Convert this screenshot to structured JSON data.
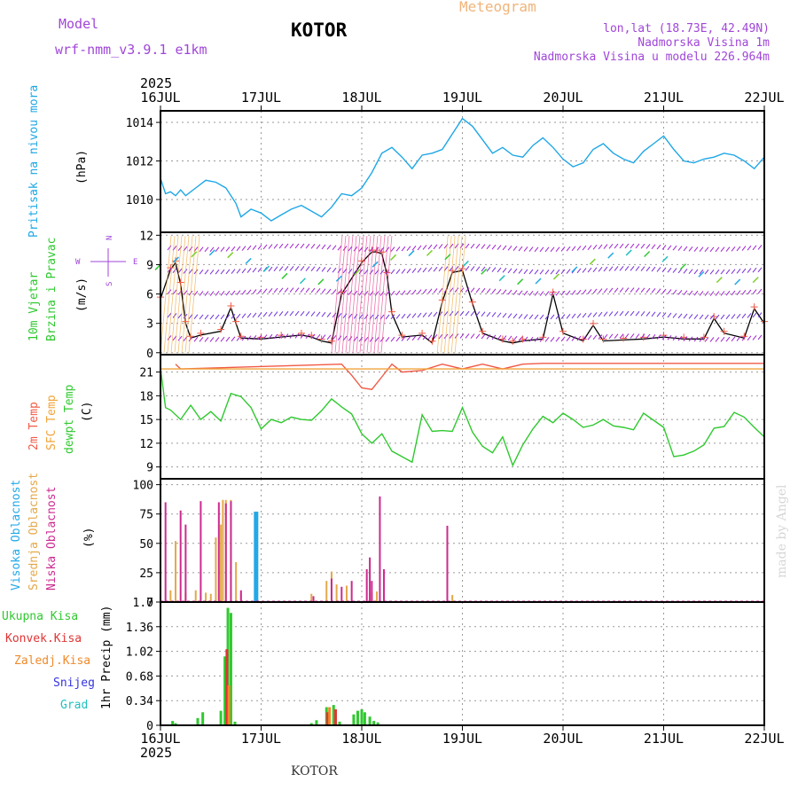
{
  "header": {
    "model_label": "Model",
    "model_name": "wrf-nmm_v3.9.1 e1km",
    "station": "KOTOR",
    "product": "Meteogram",
    "coords": "lon,lat (18.73E, 42.49N)",
    "elevation": "Nadmorska Visina 1m",
    "model_elevation": "Nadmorska Visina u modelu 226.964m",
    "footer_station": "KOTOR",
    "credit": "made by Angel"
  },
  "colors": {
    "pressure": "#1ea7e6",
    "temp2m": "#f05a46",
    "sfc_temp": "#f0a43a",
    "dewpoint": "#2fc92f",
    "high_cloud": "#23a8e8",
    "mid_cloud": "#e3a94a",
    "low_cloud": "#cc2a90",
    "total_precip": "#2fc92f",
    "conv_precip": "#e03434",
    "frozen_precip": "#f08a2a",
    "snow": "#3434e0",
    "hail": "#20c0c0",
    "model_label": "#a046d8",
    "product": "#f0b47a"
  },
  "time_axis": {
    "year": "2025",
    "ticks": [
      "16JUL",
      "17JUL",
      "18JUL",
      "19JUL",
      "20JUL",
      "21JUL",
      "22JUL"
    ]
  },
  "panels": {
    "pressure": {
      "label": "Pritisak na nivou mora",
      "unit": "(hPa)"
    },
    "wind": {
      "label1": "10m Vjetar",
      "label2": "Brzina i Pravac",
      "unit": "(m/s)",
      "compass": [
        "N",
        "E",
        "S",
        "W"
      ]
    },
    "temp": {
      "label1": "2m Temp",
      "label2": "SFC Temp",
      "label3": "dewpt Temp",
      "unit": "(C)"
    },
    "cloud": {
      "label1": "Visoka Oblacnost",
      "label2": "Srednja Oblacnost",
      "label3": "Niska Oblacnost",
      "unit": "(%)"
    },
    "precip": {
      "legend": [
        "Ukupna Kisa",
        "Konvek.Kisa",
        "Zaledj.Kisa",
        "Snijeg",
        "Grad"
      ],
      "unit": "1hr Precip (mm)"
    }
  },
  "chart_data": [
    {
      "type": "line",
      "panel": "pressure",
      "title": "Pritisak na nivou mora",
      "ylabel": "(hPa)",
      "x_unit": "days since 16JUL 00h",
      "ylim": [
        1008.3,
        1014.6
      ],
      "yticks": [
        1010,
        1012,
        1014
      ],
      "grid": true,
      "series": [
        {
          "name": "Pritisak na nivou mora",
          "x": [
            0,
            0.05,
            0.1,
            0.15,
            0.2,
            0.25,
            0.35,
            0.45,
            0.55,
            0.65,
            0.75,
            0.8,
            0.9,
            1.0,
            1.1,
            1.2,
            1.3,
            1.4,
            1.5,
            1.6,
            1.7,
            1.8,
            1.9,
            2.0,
            2.1,
            2.2,
            2.3,
            2.4,
            2.5,
            2.6,
            2.7,
            2.8,
            2.9,
            3.0,
            3.1,
            3.2,
            3.3,
            3.4,
            3.5,
            3.6,
            3.7,
            3.8,
            3.9,
            4.0,
            4.1,
            4.2,
            4.3,
            4.4,
            4.5,
            4.6,
            4.7,
            4.8,
            4.9,
            5.0,
            5.1,
            5.2,
            5.3,
            5.4,
            5.5,
            5.6,
            5.7,
            5.8,
            5.9,
            6.0
          ],
          "y": [
            1011.1,
            1010.3,
            1010.4,
            1010.2,
            1010.5,
            1010.2,
            1010.6,
            1011.0,
            1010.9,
            1010.6,
            1009.8,
            1009.1,
            1009.5,
            1009.3,
            1008.9,
            1009.2,
            1009.5,
            1009.7,
            1009.4,
            1009.1,
            1009.6,
            1010.3,
            1010.2,
            1010.6,
            1011.4,
            1012.4,
            1012.7,
            1012.2,
            1011.6,
            1012.3,
            1012.4,
            1012.6,
            1013.4,
            1014.2,
            1013.8,
            1013.1,
            1012.4,
            1012.7,
            1012.3,
            1012.2,
            1012.8,
            1013.2,
            1012.7,
            1012.1,
            1011.7,
            1011.9,
            1012.6,
            1012.9,
            1012.4,
            1012.1,
            1011.9,
            1012.5,
            1012.9,
            1013.3,
            1012.6,
            1012.0,
            1011.9,
            1012.1,
            1012.2,
            1012.4,
            1012.3,
            1012.0,
            1011.6,
            1012.2
          ]
        }
      ]
    },
    {
      "type": "line",
      "panel": "wind",
      "title": "10m Vjetar Brzina i Pravac",
      "ylabel": "(m/s)",
      "x_unit": "days since 16JUL 00h",
      "ylim": [
        -0.2,
        12.3
      ],
      "yticks": [
        0,
        3,
        6,
        9,
        12
      ],
      "grid": true,
      "series": [
        {
          "name": "Brzina",
          "x": [
            0,
            0.1,
            0.15,
            0.2,
            0.25,
            0.3,
            0.4,
            0.6,
            0.7,
            0.75,
            0.8,
            1.0,
            1.2,
            1.4,
            1.5,
            1.6,
            1.7,
            1.8,
            2.0,
            2.1,
            2.15,
            2.2,
            2.25,
            2.3,
            2.4,
            2.6,
            2.7,
            2.8,
            2.9,
            3.0,
            3.1,
            3.2,
            3.4,
            3.5,
            3.6,
            3.8,
            3.9,
            4.0,
            4.2,
            4.3,
            4.4,
            4.6,
            4.8,
            5.0,
            5.2,
            5.4,
            5.5,
            5.6,
            5.8,
            5.9,
            6.0
          ],
          "y": [
            5.5,
            8.5,
            9.2,
            7.0,
            3.0,
            1.5,
            1.8,
            2.2,
            4.6,
            3.0,
            1.5,
            1.4,
            1.6,
            1.8,
            1.6,
            1.2,
            1.0,
            6.0,
            9.2,
            10.3,
            10.3,
            10.1,
            8.0,
            4.0,
            1.6,
            1.8,
            1.0,
            5.2,
            8.2,
            8.4,
            5.0,
            2.0,
            1.2,
            1.0,
            1.2,
            1.4,
            6.0,
            2.0,
            1.2,
            2.8,
            1.2,
            1.3,
            1.4,
            1.6,
            1.4,
            1.4,
            3.5,
            2.0,
            1.5,
            4.5,
            3.0
          ]
        }
      ]
    },
    {
      "type": "line",
      "panel": "temperature",
      "title": "2m Temp / SFC Temp / dewpt Temp",
      "ylabel": "(C)",
      "x_unit": "days since 16JUL 00h",
      "ylim": [
        7.5,
        23.2
      ],
      "yticks": [
        9,
        12,
        15,
        18,
        21
      ],
      "grid": true,
      "series": [
        {
          "name": "2m Temp",
          "x": [
            0.15,
            0.2,
            1.8,
            1.9,
            2.0,
            2.1,
            2.2,
            2.3,
            2.4,
            2.6,
            2.8,
            3.0,
            3.2,
            3.4,
            3.6,
            3.8,
            4.0,
            4.2,
            4.4,
            4.6,
            4.8,
            5.0,
            5.2,
            5.4,
            5.6,
            5.8,
            6.0
          ],
          "y": [
            22.0,
            21.4,
            22.0,
            20.6,
            19.0,
            18.8,
            20.4,
            22.0,
            21.0,
            21.2,
            22.0,
            21.4,
            22.0,
            21.4,
            22.0,
            22.1,
            22.1,
            22.1,
            22.1,
            22.1,
            22.1,
            22.1,
            22.1,
            22.1,
            22.1,
            22.1,
            22.1
          ]
        },
        {
          "name": "SFC Temp",
          "x": [
            0,
            6
          ],
          "y": [
            21.4,
            21.4
          ]
        },
        {
          "name": "dewpt Temp",
          "x": [
            0,
            0.05,
            0.1,
            0.2,
            0.3,
            0.4,
            0.5,
            0.6,
            0.7,
            0.8,
            0.9,
            1.0,
            1.1,
            1.2,
            1.3,
            1.4,
            1.5,
            1.6,
            1.7,
            1.8,
            1.9,
            2.0,
            2.1,
            2.2,
            2.3,
            2.4,
            2.5,
            2.6,
            2.7,
            2.8,
            2.9,
            3.0,
            3.1,
            3.2,
            3.3,
            3.4,
            3.5,
            3.6,
            3.7,
            3.8,
            3.9,
            4.0,
            4.1,
            4.2,
            4.3,
            4.4,
            4.5,
            4.6,
            4.7,
            4.8,
            4.9,
            5.0,
            5.1,
            5.2,
            5.3,
            5.4,
            5.5,
            5.6,
            5.7,
            5.8,
            5.9,
            6.0
          ],
          "y": [
            21.5,
            16.5,
            16.2,
            15.0,
            16.8,
            15.0,
            16.0,
            14.8,
            18.3,
            17.9,
            16.5,
            13.8,
            15.0,
            14.6,
            15.3,
            15.0,
            14.9,
            16.1,
            17.6,
            16.6,
            15.7,
            13.2,
            12.0,
            13.2,
            11.0,
            10.3,
            9.6,
            15.6,
            13.5,
            13.6,
            13.5,
            16.5,
            13.4,
            11.6,
            10.8,
            12.8,
            9.2,
            11.8,
            13.8,
            15.4,
            14.6,
            15.8,
            15.0,
            14.0,
            14.3,
            15.0,
            14.2,
            14.0,
            13.7,
            15.8,
            14.9,
            14.0,
            10.3,
            10.5,
            11.0,
            11.8,
            13.9,
            14.1,
            15.9,
            15.3,
            14.0,
            12.8
          ]
        }
      ]
    },
    {
      "type": "bar",
      "panel": "cloud",
      "title": "Visoka / Srednja / Niska Oblacnost",
      "ylabel": "(%)",
      "x_unit": "days since 16JUL 00h",
      "ylim": [
        0,
        105
      ],
      "yticks": [
        0,
        25,
        50,
        75,
        100
      ],
      "grid": true,
      "series": [
        {
          "name": "Visoka Oblacnost",
          "x": [
            0.95
          ],
          "values": [
            77
          ]
        },
        {
          "name": "Srednja Oblacnost",
          "x": [
            0.1,
            0.15,
            0.25,
            0.35,
            0.45,
            0.5,
            0.55,
            0.6,
            0.62,
            0.65,
            0.7,
            0.75,
            0.8,
            1.5,
            1.65,
            1.7,
            1.75,
            1.85,
            2.1,
            2.15,
            2.9
          ],
          "values": [
            10,
            52,
            8,
            10,
            8,
            7,
            55,
            66,
            87,
            87,
            87,
            34,
            8,
            7,
            18,
            26,
            15,
            14,
            8,
            9,
            6
          ]
        },
        {
          "name": "Niska Oblacnost",
          "x": [
            0.05,
            0.2,
            0.25,
            0.4,
            0.58,
            0.65,
            0.7,
            0.8,
            1.52,
            1.7,
            1.8,
            1.9,
            2.05,
            2.08,
            2.1,
            2.18,
            2.22,
            2.85
          ],
          "values": [
            85,
            78,
            66,
            86,
            85,
            84,
            86,
            10,
            5,
            20,
            13,
            18,
            28,
            38,
            18,
            90,
            28,
            65
          ]
        }
      ]
    },
    {
      "type": "bar",
      "panel": "precip",
      "title": "1hr Precip",
      "ylabel": "1hr Precip (mm)",
      "x_unit": "days since 16JUL 00h",
      "ylim": [
        0,
        1.7
      ],
      "yticks": [
        0,
        0.34,
        0.68,
        1.02,
        1.36,
        1.7
      ],
      "grid": true,
      "series": [
        {
          "name": "Ukupna Kisa",
          "x": [
            0.12,
            0.15,
            0.37,
            0.42,
            0.6,
            0.64,
            0.67,
            0.7,
            0.74,
            1.5,
            1.55,
            1.65,
            1.72,
            1.78,
            1.92,
            1.96,
            2.0,
            2.03,
            2.08,
            2.12,
            2.16
          ],
          "values": [
            0.06,
            0.03,
            0.1,
            0.18,
            0.2,
            0.95,
            1.62,
            1.55,
            0.05,
            0.03,
            0.07,
            0.25,
            0.28,
            0.05,
            0.15,
            0.2,
            0.22,
            0.18,
            0.12,
            0.06,
            0.04
          ]
        },
        {
          "name": "Konvek.Kisa",
          "x": [
            0.66,
            1.66,
            1.74
          ],
          "values": [
            1.05,
            0.18,
            0.22
          ]
        },
        {
          "name": "Zaledj.Kisa",
          "x": [
            0.68,
            1.68
          ],
          "values": [
            0.55,
            0.25
          ]
        }
      ]
    }
  ]
}
